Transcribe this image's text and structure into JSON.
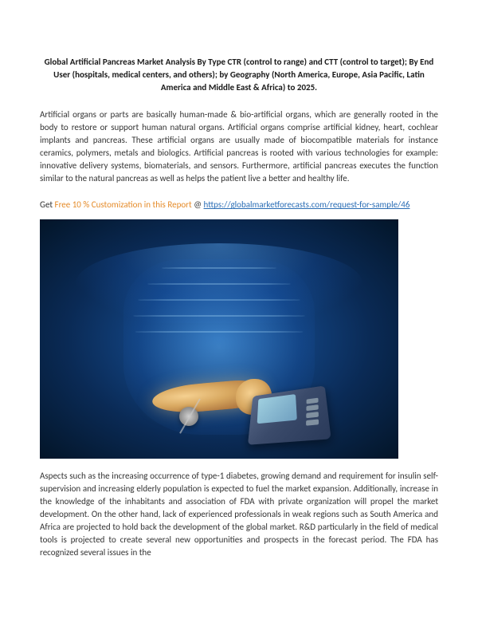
{
  "title": "Global Artificial Pancreas Market Analysis By Type CTR (control to range) and CTT (control to target); By End User (hospitals, medical centers, and others); by Geography (North America, Europe, Asia Pacific, Latin America and Middle East & Africa) to 2025.",
  "intro_para": "Artificial organs or parts are basically human-made & bio-artificial organs, which are generally rooted in the body to restore or support human natural organs. Artificial organs comprise artificial kidney, heart, cochlear implants and pancreas. These artificial organs are usually made of biocompatible materials for instance ceramics, polymers, metals and biologics. Artificial pancreas is rooted with various technologies for example: innovative delivery systems, biomaterials, and sensors. Furthermore, artificial pancreas executes the function similar to the natural pancreas as well as helps the patient live a better and healthy life.",
  "promo": {
    "get": "Get",
    "offer": "Free 10 % Customization",
    "in_report": "in this Report",
    "at": "@",
    "link_text": "https://globalmarketforecasts.com/request-for-sample/46",
    "link_href": "https://globalmarketforecasts.com/request-for-sample/46"
  },
  "image": {
    "alt": "Illustration of human torso anatomy showing pancreas connected to an artificial pancreas monitoring device",
    "colors": {
      "bg_outer": "#031528",
      "bg_inner": "#1a5aa8",
      "body_glow": "#78c8ff",
      "pancreas_light": "#f5d090",
      "pancreas_dark": "#b07840",
      "device_body": "#3a4a6a",
      "device_screen": "#a0d0e0"
    }
  },
  "body_para": "Aspects such as the increasing occurrence of type-1 diabetes, growing demand and requirement for insulin self-supervision and increasing elderly population is expected to fuel the market expansion. Additionally, increase in the knowledge of the inhabitants and association of FDA with private organization will propel the market development. On the other hand, lack of experienced professionals in weak regions such as South America and Africa are projected to hold back the development of the global market. R&D particularly in the field of medical tools is projected to create several new opportunities and prospects in the forecast period. The FDA has recognized several issues in the"
}
